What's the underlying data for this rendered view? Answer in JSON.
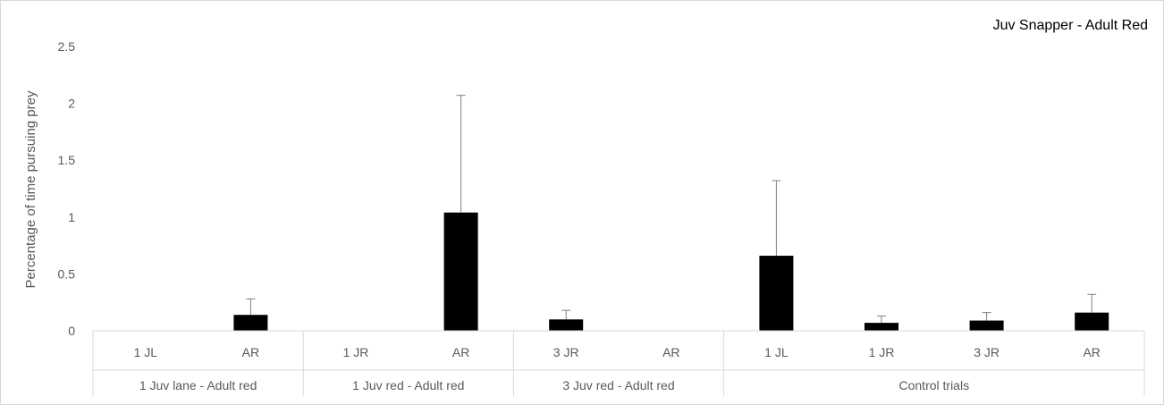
{
  "chart_data": {
    "type": "bar",
    "title": "Juv Snapper - Adult Red",
    "xlabel": "",
    "ylabel": "Percentage of time pursuing prey",
    "ylim": [
      0,
      2.5
    ],
    "yticks": [
      "0",
      "0.5",
      "1",
      "1.5",
      "2",
      "2.5"
    ],
    "grid": false,
    "groups": [
      {
        "label": "1 Juv lane - Adult red",
        "categories": [
          "1 JL",
          "AR"
        ],
        "values": [
          0,
          0.14
        ],
        "errors": [
          0,
          0.14
        ]
      },
      {
        "label": "1 Juv red - Adult red",
        "categories": [
          "1 JR",
          "AR"
        ],
        "values": [
          0,
          1.04
        ],
        "errors": [
          0,
          1.03
        ]
      },
      {
        "label": "3 Juv red - Adult red",
        "categories": [
          "3 JR",
          "AR"
        ],
        "values": [
          0.1,
          0
        ],
        "errors": [
          0.08,
          0
        ]
      },
      {
        "label": "Control trials",
        "categories": [
          "1 JL",
          "1 JR",
          "3 JR",
          "AR"
        ],
        "values": [
          0.66,
          0.07,
          0.09,
          0.16
        ],
        "errors": [
          0.66,
          0.06,
          0.07,
          0.16
        ]
      }
    ],
    "colors": {
      "bar": "#000000",
      "error_bar": "#7f7f7f",
      "axis": "#d9d9d9",
      "text": "#595959"
    }
  }
}
